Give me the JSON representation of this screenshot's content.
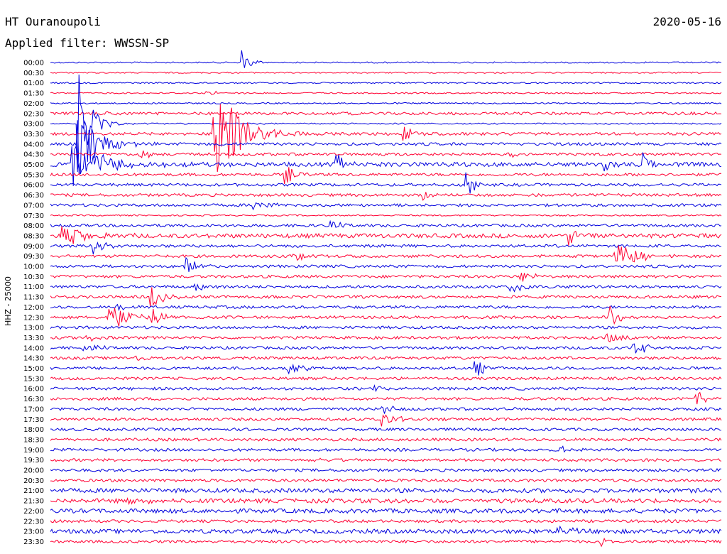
{
  "header": {
    "station": "HT Ouranoupoli",
    "date": "2020-05-16",
    "filter": "Applied filter: WWSSN-SP"
  },
  "y_axis_label": "HHZ - 25000",
  "colors": {
    "even_trace": "#0000dd",
    "odd_trace": "#ff0033",
    "text": "#000000"
  },
  "chart_data": {
    "type": "line",
    "title": "HT Ouranoupoli",
    "subtitle": "Applied filter: WWSSN-SP",
    "ylabel": "HHZ - 25000",
    "row_labels": [
      "00:00",
      "00:30",
      "01:00",
      "01:30",
      "02:00",
      "02:30",
      "03:00",
      "03:30",
      "04:00",
      "04:30",
      "05:00",
      "05:30",
      "06:00",
      "06:30",
      "07:00",
      "07:30",
      "08:00",
      "08:30",
      "09:00",
      "09:30",
      "10:00",
      "10:30",
      "11:00",
      "11:30",
      "12:00",
      "12:30",
      "13:00",
      "13:30",
      "14:00",
      "14:30",
      "15:00",
      "15:30",
      "16:00",
      "16:30",
      "17:00",
      "17:30",
      "18:00",
      "18:30",
      "19:00",
      "19:30",
      "20:00",
      "20:30",
      "21:00",
      "21:30",
      "22:00",
      "22:30",
      "23:00",
      "23:30"
    ],
    "x_range_minutes": [
      0,
      30
    ],
    "noise_level": [
      1,
      1,
      1,
      1,
      1,
      2,
      1,
      2,
      2,
      2,
      3,
      2,
      2,
      2,
      2,
      1,
      2,
      3,
      2,
      2,
      2,
      2,
      2,
      2,
      2,
      2,
      2,
      2,
      2,
      2,
      2,
      2,
      2,
      2,
      2,
      2,
      2,
      2,
      2,
      2,
      2,
      2,
      3,
      3,
      3,
      2,
      3,
      2
    ],
    "events": [
      {
        "row": 0,
        "t": 8.6,
        "amp": 30,
        "dur": 0.5
      },
      {
        "row": 3,
        "t": 7.0,
        "amp": 3,
        "dur": 1.5
      },
      {
        "row": 5,
        "t": 1.8,
        "amp": 4,
        "dur": 1.5
      },
      {
        "row": 6,
        "t": 1.2,
        "amp": 80,
        "dur": 1.0
      },
      {
        "row": 7,
        "t": 7.3,
        "amp": 85,
        "dur": 2.0
      },
      {
        "row": 7,
        "t": 15.8,
        "amp": 14,
        "dur": 0.6
      },
      {
        "row": 8,
        "t": 1.2,
        "amp": 50,
        "dur": 1.8
      },
      {
        "row": 9,
        "t": 4.0,
        "amp": 8,
        "dur": 1.0
      },
      {
        "row": 9,
        "t": 20.5,
        "amp": 6,
        "dur": 0.8
      },
      {
        "row": 10,
        "t": 1.0,
        "amp": 30,
        "dur": 3.0
      },
      {
        "row": 10,
        "t": 12.8,
        "amp": 14,
        "dur": 0.8
      },
      {
        "row": 10,
        "t": 24.8,
        "amp": 12,
        "dur": 0.8
      },
      {
        "row": 10,
        "t": 26.5,
        "amp": 16,
        "dur": 0.8
      },
      {
        "row": 11,
        "t": 10.5,
        "amp": 14,
        "dur": 0.8
      },
      {
        "row": 12,
        "t": 18.5,
        "amp": 22,
        "dur": 0.8
      },
      {
        "row": 13,
        "t": 16.7,
        "amp": 8,
        "dur": 0.6
      },
      {
        "row": 14,
        "t": 9.1,
        "amp": 8,
        "dur": 1.2
      },
      {
        "row": 16,
        "t": 12.5,
        "amp": 6,
        "dur": 1.2
      },
      {
        "row": 17,
        "t": 0.5,
        "amp": 16,
        "dur": 2.0
      },
      {
        "row": 17,
        "t": 23.2,
        "amp": 16,
        "dur": 0.5
      },
      {
        "row": 18,
        "t": 1.9,
        "amp": 14,
        "dur": 1.0
      },
      {
        "row": 19,
        "t": 10.9,
        "amp": 16,
        "dur": 0.8
      },
      {
        "row": 19,
        "t": 25.2,
        "amp": 26,
        "dur": 1.5
      },
      {
        "row": 20,
        "t": 6.0,
        "amp": 16,
        "dur": 0.8
      },
      {
        "row": 21,
        "t": 21.0,
        "amp": 12,
        "dur": 0.8
      },
      {
        "row": 22,
        "t": 6.4,
        "amp": 6,
        "dur": 1.2
      },
      {
        "row": 22,
        "t": 20.6,
        "amp": 8,
        "dur": 1.0
      },
      {
        "row": 23,
        "t": 4.5,
        "amp": 20,
        "dur": 0.8
      },
      {
        "row": 24,
        "t": 3.0,
        "amp": 6,
        "dur": 1.0
      },
      {
        "row": 25,
        "t": 2.5,
        "amp": 28,
        "dur": 1.5
      },
      {
        "row": 25,
        "t": 4.5,
        "amp": 20,
        "dur": 0.8
      },
      {
        "row": 25,
        "t": 25.0,
        "amp": 22,
        "dur": 0.6
      },
      {
        "row": 27,
        "t": 1.6,
        "amp": 8,
        "dur": 0.6
      },
      {
        "row": 27,
        "t": 24.8,
        "amp": 8,
        "dur": 1.2
      },
      {
        "row": 28,
        "t": 1.5,
        "amp": 6,
        "dur": 1.2
      },
      {
        "row": 28,
        "t": 26.0,
        "amp": 22,
        "dur": 0.8
      },
      {
        "row": 29,
        "t": 3.8,
        "amp": 4,
        "dur": 1.0
      },
      {
        "row": 30,
        "t": 10.6,
        "amp": 10,
        "dur": 1.0
      },
      {
        "row": 30,
        "t": 19.0,
        "amp": 12,
        "dur": 1.0
      },
      {
        "row": 32,
        "t": 14.5,
        "amp": 6,
        "dur": 0.6
      },
      {
        "row": 33,
        "t": 28.9,
        "amp": 16,
        "dur": 0.6
      },
      {
        "row": 34,
        "t": 14.8,
        "amp": 10,
        "dur": 0.8
      },
      {
        "row": 35,
        "t": 14.8,
        "amp": 14,
        "dur": 1.0
      },
      {
        "row": 38,
        "t": 22.8,
        "amp": 6,
        "dur": 1.0
      },
      {
        "row": 39,
        "t": 11.8,
        "amp": 4,
        "dur": 1.0
      },
      {
        "row": 43,
        "t": 3.4,
        "amp": 6,
        "dur": 1.5
      },
      {
        "row": 46,
        "t": 22.7,
        "amp": 10,
        "dur": 1.2
      },
      {
        "row": 47,
        "t": 24.6,
        "amp": 6,
        "dur": 0.8
      }
    ]
  }
}
